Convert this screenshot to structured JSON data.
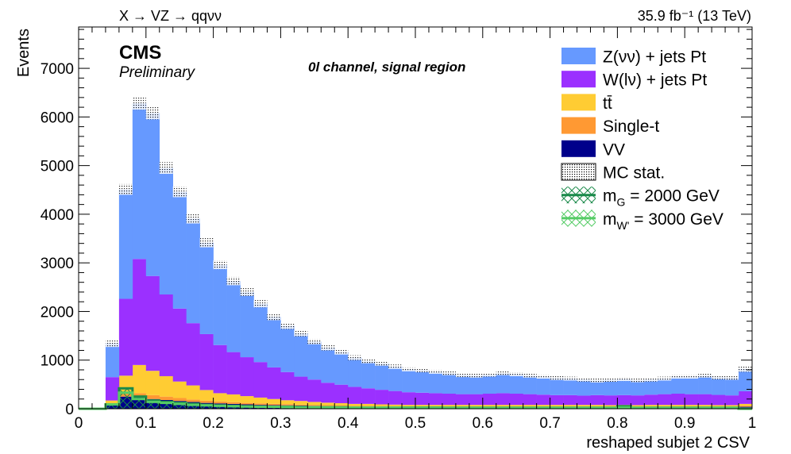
{
  "chart_data": {
    "type": "bar",
    "stacked": true,
    "header_left": "X → VZ → qqνν",
    "header_right": "35.9 fb⁻¹ (13 TeV)",
    "experiment": "CMS",
    "status": "Preliminary",
    "region_label": "0l channel, signal region",
    "xlabel": "reshaped subjet 2 CSV",
    "ylabel": "Events",
    "xlim": [
      0,
      1
    ],
    "ylim": [
      0,
      7850
    ],
    "x_ticks": [
      "0",
      "0.1",
      "0.2",
      "0.3",
      "0.4",
      "0.5",
      "0.6",
      "0.7",
      "0.8",
      "0.9",
      "1"
    ],
    "y_ticks": [
      "0",
      "1000",
      "2000",
      "3000",
      "4000",
      "5000",
      "6000",
      "7000"
    ],
    "legend_position": "top-right",
    "bin_edges": [
      0.0,
      0.02,
      0.04,
      0.06,
      0.08,
      0.1,
      0.12,
      0.14,
      0.16,
      0.18,
      0.2,
      0.22,
      0.24,
      0.26,
      0.28,
      0.3,
      0.32,
      0.34,
      0.36,
      0.38,
      0.4,
      0.42,
      0.44,
      0.46,
      0.48,
      0.5,
      0.52,
      0.54,
      0.56,
      0.58,
      0.6,
      0.62,
      0.64,
      0.66,
      0.68,
      0.7,
      0.72,
      0.74,
      0.76,
      0.78,
      0.8,
      0.82,
      0.84,
      0.86,
      0.88,
      0.9,
      0.92,
      0.94,
      0.96,
      0.98,
      1.0
    ],
    "series": [
      {
        "name": "VV",
        "color": "#00008b",
        "values": [
          0,
          0,
          80,
          250,
          230,
          200,
          180,
          160,
          140,
          120,
          110,
          100,
          90,
          80,
          75,
          70,
          65,
          60,
          55,
          50,
          45,
          45,
          40,
          40,
          35,
          35,
          35,
          35,
          35,
          35,
          35,
          35,
          35,
          35,
          35,
          35,
          35,
          35,
          35,
          30,
          35,
          30,
          35,
          35,
          35,
          35,
          35,
          30,
          30,
          40
        ]
      },
      {
        "name": "Single-t",
        "color": "#ff9933",
        "values": [
          0,
          0,
          30,
          90,
          90,
          80,
          70,
          60,
          50,
          45,
          40,
          35,
          30,
          30,
          25,
          25,
          20,
          20,
          20,
          20,
          15,
          15,
          15,
          15,
          15,
          15,
          15,
          15,
          15,
          15,
          15,
          15,
          15,
          15,
          15,
          15,
          15,
          15,
          15,
          15,
          15,
          15,
          15,
          15,
          15,
          15,
          15,
          15,
          15,
          20
        ]
      },
      {
        "name": "tt̄",
        "color": "#ffcc33",
        "values": [
          0,
          0,
          60,
          340,
          580,
          500,
          420,
          340,
          290,
          220,
          170,
          160,
          140,
          120,
          100,
          80,
          75,
          60,
          50,
          45,
          40,
          40,
          35,
          30,
          30,
          30,
          30,
          30,
          30,
          30,
          30,
          30,
          30,
          30,
          30,
          30,
          30,
          30,
          30,
          30,
          30,
          30,
          30,
          30,
          30,
          30,
          30,
          30,
          30,
          40
        ]
      },
      {
        "name": "W(lν) + jets Pt",
        "color": "#9b30ff",
        "values": [
          0,
          0,
          480,
          1580,
          2180,
          1950,
          1680,
          1500,
          1280,
          1150,
          990,
          870,
          800,
          730,
          650,
          580,
          500,
          460,
          410,
          380,
          350,
          320,
          300,
          280,
          260,
          250,
          240,
          230,
          220,
          220,
          230,
          240,
          230,
          220,
          210,
          200,
          200,
          190,
          200,
          200,
          200,
          200,
          210,
          220,
          230,
          220,
          220,
          210,
          200,
          260
        ]
      },
      {
        "name": "Z(νν) + jets Pt",
        "color": "#6699ff",
        "values": [
          0,
          0,
          700,
          2250,
          3200,
          3350,
          2600,
          2400,
          2150,
          1880,
          1650,
          1460,
          1340,
          1200,
          1040,
          950,
          890,
          780,
          720,
          670,
          600,
          560,
          540,
          500,
          470,
          460,
          440,
          420,
          390,
          380,
          390,
          410,
          400,
          380,
          370,
          350,
          340,
          330,
          300,
          320,
          330,
          310,
          310,
          320,
          350,
          360,
          380,
          360,
          360,
          460
        ]
      }
    ],
    "mc_stat_uncertainty": [
      0,
      0,
      80,
      110,
      130,
      130,
      120,
      110,
      100,
      95,
      90,
      85,
      80,
      75,
      70,
      65,
      60,
      55,
      55,
      50,
      50,
      45,
      45,
      45,
      40,
      40,
      40,
      40,
      40,
      40,
      40,
      40,
      40,
      40,
      40,
      40,
      40,
      40,
      40,
      40,
      40,
      40,
      40,
      40,
      40,
      40,
      40,
      40,
      40,
      60
    ],
    "mc_stat_label": "MC stat.",
    "signals": [
      {
        "name": "m_G = 2000 GeV",
        "label_main": "m",
        "label_sub": "G",
        "label_rest": " = 2000 GeV",
        "color": "#1a8a4a",
        "values": [
          0,
          0,
          90,
          420,
          250,
          170,
          140,
          120,
          100,
          80,
          70,
          60,
          50,
          45,
          40,
          40,
          35,
          30,
          30,
          30,
          25,
          25,
          25,
          25,
          25,
          25,
          25,
          20,
          20,
          20,
          20,
          20,
          20,
          20,
          20,
          20,
          20,
          20,
          20,
          20,
          50,
          20,
          20,
          20,
          20,
          20,
          20,
          20,
          20,
          0
        ]
      },
      {
        "name": "m_W' = 3000 GeV",
        "label_main": "m",
        "label_sub": "W'",
        "label_rest": " = 3000 GeV",
        "color": "#55cc66",
        "values": [
          0,
          0,
          90,
          330,
          200,
          140,
          120,
          100,
          80,
          70,
          60,
          50,
          45,
          40,
          40,
          35,
          30,
          30,
          30,
          25,
          25,
          25,
          25,
          25,
          20,
          20,
          20,
          20,
          20,
          20,
          20,
          20,
          20,
          20,
          20,
          20,
          20,
          20,
          20,
          20,
          25,
          20,
          20,
          20,
          20,
          20,
          20,
          20,
          20,
          0
        ]
      }
    ]
  }
}
